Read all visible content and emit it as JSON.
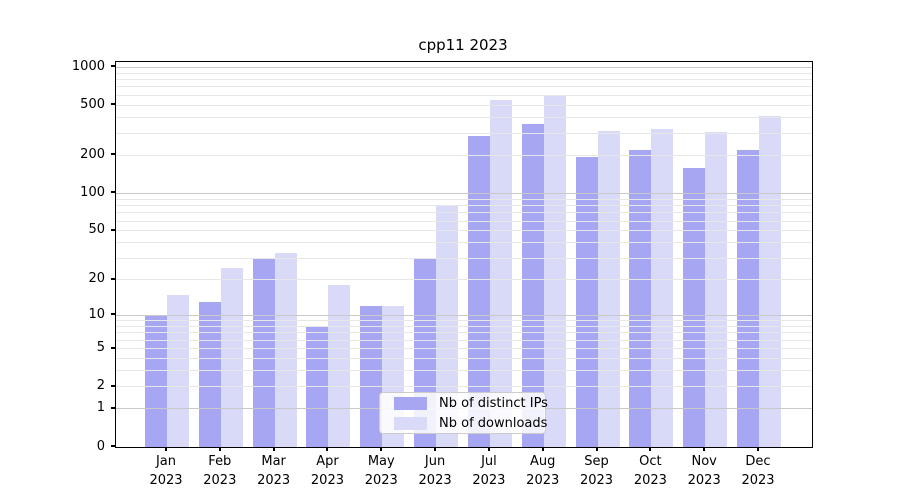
{
  "chart_data": {
    "type": "bar",
    "title": "cpp11 2023",
    "months": [
      "Jan",
      "Feb",
      "Mar",
      "Apr",
      "May",
      "Jun",
      "Jul",
      "Aug",
      "Sep",
      "Oct",
      "Nov",
      "Dec"
    ],
    "year_label": "2023",
    "categories": [
      "Jan 2023",
      "Feb 2023",
      "Mar 2023",
      "Apr 2023",
      "May 2023",
      "Jun 2023",
      "Jul 2023",
      "Aug 2023",
      "Sep 2023",
      "Oct 2023",
      "Nov 2023",
      "Dec 2023"
    ],
    "series": [
      {
        "name": "Nb of distinct IPs",
        "color": "#a6a6f2",
        "values": [
          10,
          13,
          30,
          8,
          12,
          30,
          285,
          355,
          195,
          220,
          160,
          220
        ]
      },
      {
        "name": "Nb of downloads",
        "color": "#d9d9f8",
        "values": [
          15,
          25,
          33,
          18,
          12,
          80,
          550,
          590,
          310,
          325,
          305,
          415
        ]
      }
    ],
    "xlabel": "",
    "ylabel": "",
    "y_ticks": [
      0,
      1,
      2,
      5,
      10,
      20,
      50,
      100,
      200,
      500,
      1000
    ],
    "scale": "log1p",
    "ylim": [
      0,
      1100
    ],
    "grid": "horizontal, minor lines light + major lines at powers of 10, drawn over bars",
    "legend_position": "lower center",
    "colors": {
      "distinct_ips_bar": "#a6a6f2",
      "downloads_bar": "#d9d9f8",
      "grid_minor": "#e7e7e7",
      "grid_major": "#c9c9c9",
      "axis": "#000000",
      "background": "#ffffff"
    }
  }
}
